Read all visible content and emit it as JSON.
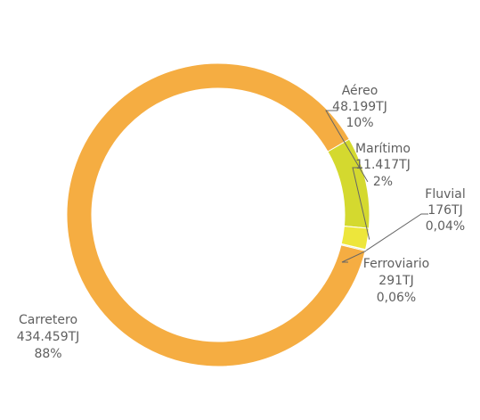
{
  "chart_data": {
    "type": "pie",
    "style": "donut",
    "slices": [
      {
        "label": "Aéreo",
        "value": 48199,
        "value_text": "48.199TJ",
        "percent_text": "10%",
        "color": "#d4d92f"
      },
      {
        "label": "Marítimo",
        "value": 11417,
        "value_text": "11.417TJ",
        "percent_text": "2%",
        "color": "#ede63b"
      },
      {
        "label": "Fluvial",
        "value": 176,
        "value_text": "176TJ",
        "percent_text": "0,04%",
        "color": "#e3522b"
      },
      {
        "label": "Ferroviario",
        "value": 291,
        "value_text": "291TJ",
        "percent_text": "0,06%",
        "color": "#85bf45"
      },
      {
        "label": "Carretero",
        "value": 434459,
        "value_text": "434.459TJ",
        "percent_text": "88%",
        "color": "#f5ad42"
      }
    ],
    "colors": {
      "background": "#ffffff",
      "text": "#5f5f5f",
      "leader": "#666666"
    }
  }
}
